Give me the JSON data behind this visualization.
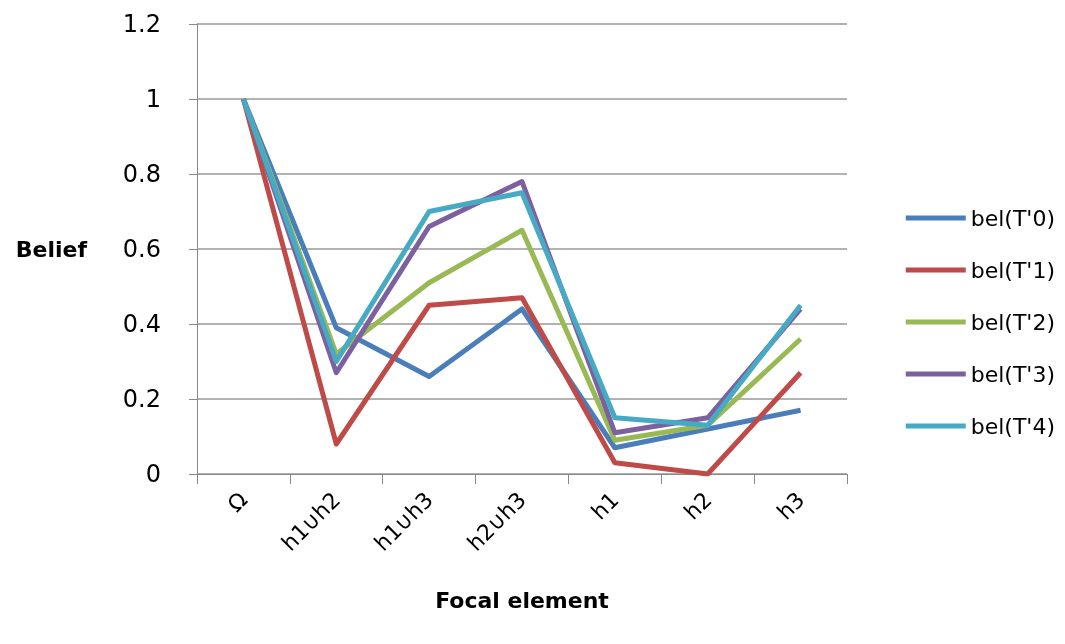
{
  "chart_data": {
    "type": "line",
    "xlabel": "Focal element",
    "ylabel": "Belief",
    "categories": [
      "Ω",
      "h1∪h2",
      "h1∪h3",
      "h2∪h3",
      "h1",
      "h2",
      "h3"
    ],
    "series": [
      {
        "name": "bel(T'0)",
        "color": "#4a7ebb",
        "values": [
          1,
          0.39,
          0.26,
          0.44,
          0.07,
          0.12,
          0.17
        ]
      },
      {
        "name": "bel(T'1)",
        "color": "#be4b48",
        "values": [
          1,
          0.08,
          0.45,
          0.47,
          0.03,
          0.0,
          0.27
        ]
      },
      {
        "name": "bel(T'2)",
        "color": "#98b954",
        "values": [
          1,
          0.32,
          0.51,
          0.65,
          0.09,
          0.13,
          0.36
        ]
      },
      {
        "name": "bel(T'3)",
        "color": "#7d60a0",
        "values": [
          1,
          0.27,
          0.66,
          0.78,
          0.11,
          0.15,
          0.44
        ]
      },
      {
        "name": "bel(T'4)",
        "color": "#46aac5",
        "values": [
          1,
          0.3,
          0.7,
          0.75,
          0.15,
          0.13,
          0.45
        ]
      }
    ],
    "ylim": [
      0,
      1.2
    ],
    "yticks": [
      0,
      0.2,
      0.4,
      0.6,
      0.8,
      1,
      1.2
    ],
    "grid": "y",
    "legend": "right",
    "marker": "none"
  }
}
